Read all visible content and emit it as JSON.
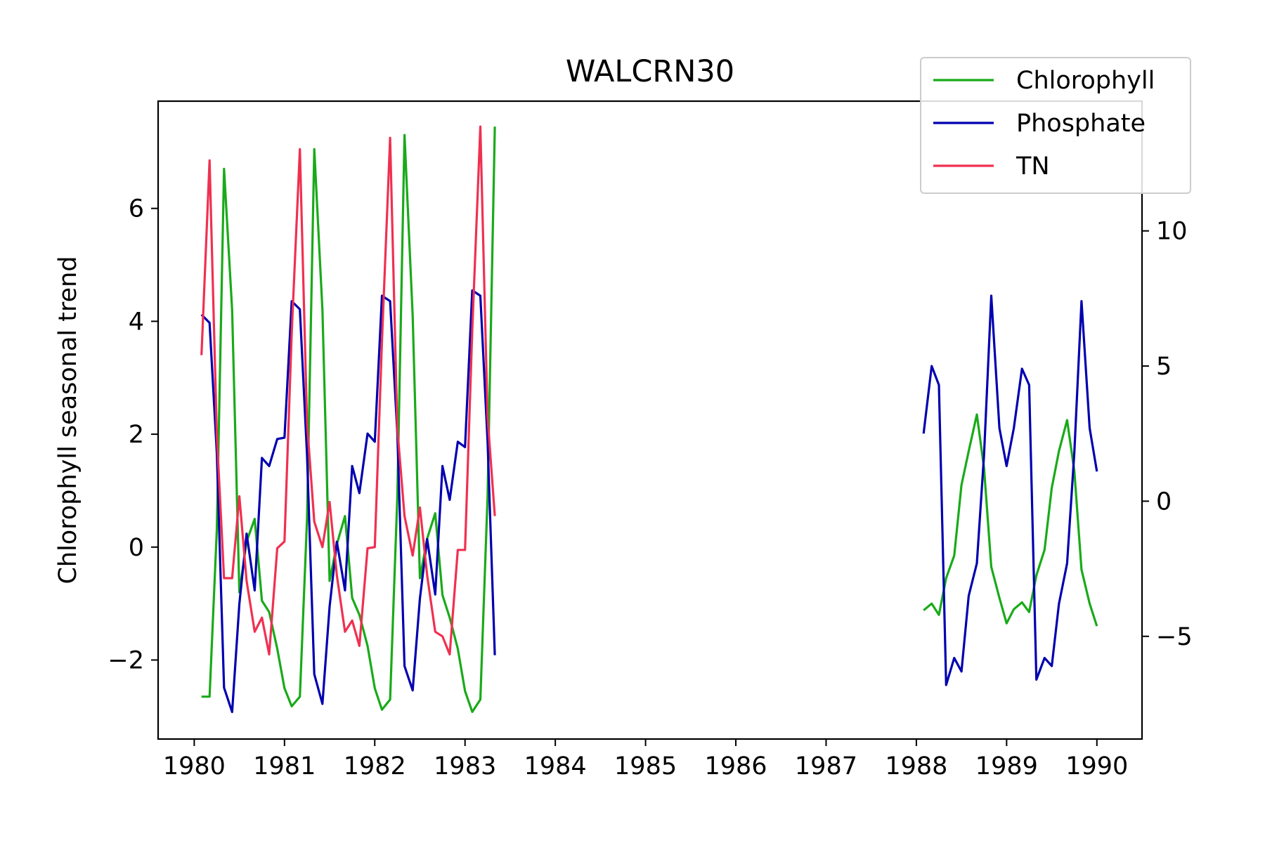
{
  "chart_data": {
    "type": "line",
    "title": "WALCRN30",
    "ylabel": "Chlorophyll seasonal trend",
    "xlim": [
      1979.6,
      1990.5
    ],
    "xticks": [
      "1980",
      "1981",
      "1982",
      "1983",
      "1984",
      "1985",
      "1986",
      "1987",
      "1988",
      "1989",
      "1990"
    ],
    "ylim_left": [
      -3.4,
      7.9
    ],
    "yticks_left": [
      "−2",
      "0",
      "2",
      "4",
      "6"
    ],
    "ylim_right": [
      -8.8,
      14.8
    ],
    "yticks_right": [
      "−5",
      "0",
      "5",
      "10"
    ],
    "grid": false,
    "legend_position": "top-right",
    "series": [
      {
        "name": "Chlorophyll",
        "axis": "left",
        "color": "#19aa19",
        "segments": [
          {
            "x": [
              1980.08,
              1980.17,
              1980.25,
              1980.33,
              1980.42,
              1980.5,
              1980.58,
              1980.67,
              1980.75,
              1980.83,
              1980.92,
              1981.0,
              1981.08,
              1981.17,
              1981.25,
              1981.33,
              1981.42,
              1981.5,
              1981.58,
              1981.67,
              1981.75,
              1981.83,
              1981.92,
              1982.0,
              1982.08,
              1982.17,
              1982.25,
              1982.33,
              1982.42,
              1982.5,
              1982.58,
              1982.67,
              1982.75,
              1982.83,
              1982.92,
              1983.0,
              1983.08,
              1983.17,
              1983.25,
              1983.33
            ],
            "y": [
              -2.65,
              -2.65,
              0.3,
              6.7,
              4.2,
              -0.8,
              0.1,
              0.5,
              -0.95,
              -1.15,
              -1.8,
              -2.5,
              -2.82,
              -2.65,
              0.5,
              7.05,
              4.2,
              -0.6,
              0.05,
              0.55,
              -0.9,
              -1.2,
              -1.75,
              -2.5,
              -2.88,
              -2.7,
              0.9,
              7.3,
              4.1,
              -0.55,
              0.15,
              0.6,
              -0.85,
              -1.25,
              -1.8,
              -2.55,
              -2.92,
              -2.7,
              0.9,
              7.45
            ]
          },
          {
            "x": [
              1988.08,
              1988.17,
              1988.25,
              1988.33,
              1988.42,
              1988.5,
              1988.58,
              1988.67,
              1988.75,
              1988.83,
              1988.92,
              1989.0,
              1989.08,
              1989.17,
              1989.25,
              1989.33,
              1989.42,
              1989.5,
              1989.58,
              1989.67,
              1989.75,
              1989.83,
              1989.92,
              1990.0
            ],
            "y": [
              -1.12,
              -1.0,
              -1.2,
              -0.55,
              -0.15,
              1.1,
              1.7,
              2.35,
              1.4,
              -0.35,
              -0.9,
              -1.35,
              -1.1,
              -0.98,
              -1.15,
              -0.5,
              -0.05,
              1.05,
              1.7,
              2.25,
              1.35,
              -0.4,
              -1.0,
              -1.4
            ]
          }
        ]
      },
      {
        "name": "Phosphate",
        "axis": "right",
        "color": "#0000b0",
        "segments": [
          {
            "x": [
              1980.08,
              1980.17,
              1980.25,
              1980.33,
              1980.42,
              1980.5,
              1980.58,
              1980.67,
              1980.75,
              1980.83,
              1980.92,
              1981.0,
              1981.08,
              1981.17,
              1981.25,
              1981.33,
              1981.42,
              1981.5,
              1981.58,
              1981.67,
              1981.75,
              1981.83,
              1981.92,
              1982.0,
              1982.08,
              1982.17,
              1982.25,
              1982.33,
              1982.42,
              1982.5,
              1982.58,
              1982.67,
              1982.75,
              1982.83,
              1982.92,
              1983.0,
              1983.08,
              1983.17,
              1983.25,
              1983.33
            ],
            "y": [
              6.9,
              6.6,
              1.8,
              -6.9,
              -7.8,
              -3.8,
              -1.2,
              -3.3,
              1.6,
              1.3,
              2.3,
              2.35,
              7.4,
              7.1,
              1.7,
              -6.4,
              -7.5,
              -3.9,
              -1.5,
              -3.3,
              1.3,
              0.3,
              2.5,
              2.2,
              7.6,
              7.4,
              2.5,
              -6.1,
              -7.0,
              -3.6,
              -1.4,
              -3.45,
              1.3,
              0.05,
              2.2,
              2.0,
              7.8,
              7.6,
              2.2,
              -5.7
            ]
          },
          {
            "x": [
              1988.08,
              1988.17,
              1988.25,
              1988.33,
              1988.42,
              1988.5,
              1988.58,
              1988.67,
              1988.75,
              1988.83,
              1988.92,
              1989.0,
              1989.08,
              1989.17,
              1989.25,
              1989.33,
              1989.42,
              1989.5,
              1989.58,
              1989.67,
              1989.75,
              1989.83,
              1989.92,
              1990.0
            ],
            "y": [
              2.5,
              5.0,
              4.3,
              -6.8,
              -5.8,
              -6.3,
              -3.5,
              -2.3,
              1.7,
              7.6,
              2.7,
              1.3,
              2.7,
              4.9,
              4.3,
              -6.6,
              -5.8,
              -6.1,
              -3.8,
              -2.3,
              1.8,
              7.4,
              2.7,
              1.1
            ]
          }
        ]
      },
      {
        "name": "TN",
        "axis": "left",
        "color": "#f03050",
        "segments": [
          {
            "x": [
              1980.08,
              1980.17,
              1980.25,
              1980.33,
              1980.42,
              1980.5,
              1980.58,
              1980.67,
              1980.75,
              1980.83,
              1980.92,
              1981.0,
              1981.08,
              1981.17,
              1981.25,
              1981.33,
              1981.42,
              1981.5,
              1981.58,
              1981.67,
              1981.75,
              1981.83,
              1981.92,
              1982.0,
              1982.08,
              1982.17,
              1982.25,
              1982.33,
              1982.42,
              1982.5,
              1982.58,
              1982.67,
              1982.75,
              1982.83,
              1982.92,
              1983.0,
              1983.08,
              1983.17,
              1983.25,
              1983.33
            ],
            "y": [
              3.4,
              6.85,
              2.0,
              -0.55,
              -0.55,
              0.9,
              -0.6,
              -1.5,
              -1.25,
              -1.9,
              -0.02,
              0.1,
              3.8,
              7.05,
              2.2,
              0.45,
              0.0,
              0.8,
              -0.5,
              -1.5,
              -1.3,
              -1.75,
              -0.02,
              0.0,
              3.65,
              7.25,
              2.1,
              0.55,
              -0.15,
              0.7,
              -0.5,
              -1.5,
              -1.58,
              -1.9,
              -0.05,
              -0.05,
              3.85,
              7.45,
              2.3,
              0.55
            ]
          }
        ]
      }
    ]
  }
}
